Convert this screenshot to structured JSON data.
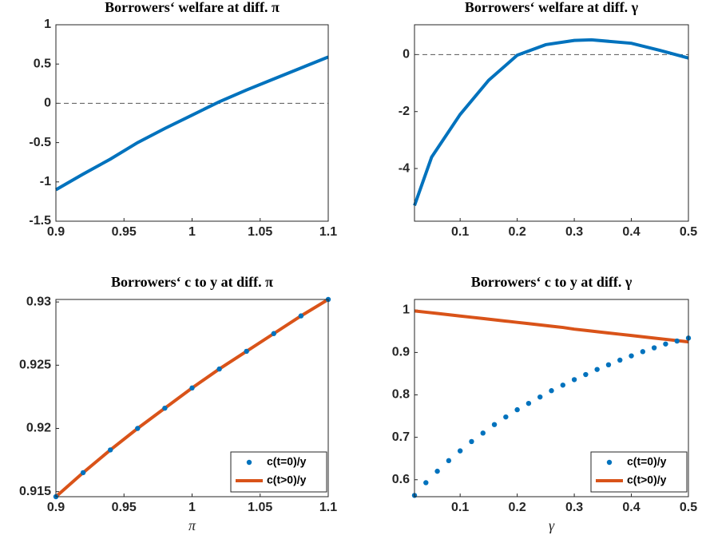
{
  "chart_data": [
    {
      "type": "line",
      "title": "Borrowers‘ welfare at diff. π",
      "x": [
        0.9,
        0.92,
        0.94,
        0.96,
        0.98,
        1.0,
        1.02,
        1.04,
        1.06,
        1.08,
        1.1
      ],
      "series": [
        {
          "color": "#0072BD",
          "style": "line",
          "values": [
            -1.1,
            -0.9,
            -0.71,
            -0.5,
            -0.32,
            -0.15,
            0.02,
            0.17,
            0.31,
            0.45,
            0.59
          ]
        }
      ],
      "hline": 0,
      "xlim": [
        0.9,
        1.1
      ],
      "xticks": [
        0.9,
        0.95,
        1,
        1.05,
        1.1
      ],
      "ylim": [
        -1.5,
        1
      ],
      "yticks": [
        -1.5,
        -1,
        -0.5,
        0,
        0.5,
        1
      ]
    },
    {
      "type": "line",
      "title": "Borrowers‘ welfare at diff. γ",
      "x": [
        0.02,
        0.05,
        0.1,
        0.15,
        0.2,
        0.25,
        0.3,
        0.33,
        0.4,
        0.45,
        0.5
      ],
      "series": [
        {
          "color": "#0072BD",
          "style": "line",
          "values": [
            -5.3,
            -3.6,
            -2.1,
            -0.9,
            -0.02,
            0.35,
            0.5,
            0.52,
            0.4,
            0.15,
            -0.12
          ]
        }
      ],
      "hline": 0,
      "xlim": [
        0.02,
        0.5
      ],
      "xticks": [
        0.1,
        0.2,
        0.3,
        0.4,
        0.5
      ],
      "ylim": [
        -5.85,
        1.05
      ],
      "yticks": [
        -4,
        -2,
        0
      ]
    },
    {
      "type": "line",
      "title": "Borrowers‘ c to y at diff. π",
      "x_label": "π",
      "x": [
        0.9,
        0.92,
        0.94,
        0.96,
        0.98,
        1.0,
        1.02,
        1.04,
        1.06,
        1.08,
        1.1
      ],
      "series": [
        {
          "name": "c(t=0)/y",
          "color": "#0072BD",
          "style": "marker",
          "values": [
            0.9146,
            0.9165,
            0.9183,
            0.92,
            0.9216,
            0.9232,
            0.9247,
            0.9261,
            0.9275,
            0.9289,
            0.9302
          ]
        },
        {
          "name": "c(t>0)/y",
          "color": "#D95319",
          "style": "line",
          "values": [
            0.9146,
            0.9165,
            0.9183,
            0.92,
            0.9216,
            0.9232,
            0.9247,
            0.9261,
            0.9275,
            0.9289,
            0.9302
          ]
        }
      ],
      "legend": "southeast",
      "xlim": [
        0.9,
        1.1
      ],
      "xticks": [
        0.9,
        0.95,
        1,
        1.05,
        1.1
      ],
      "ylim": [
        0.9146,
        0.9302
      ],
      "yticks": [
        0.915,
        0.92,
        0.925,
        0.93
      ]
    },
    {
      "type": "line",
      "title": "Borrowers‘ c to y at diff. γ",
      "x_label": "γ",
      "x": [
        0.02,
        0.04,
        0.06,
        0.08,
        0.1,
        0.12,
        0.14,
        0.16,
        0.18,
        0.2,
        0.22,
        0.24,
        0.26,
        0.28,
        0.3,
        0.32,
        0.34,
        0.36,
        0.38,
        0.4,
        0.42,
        0.44,
        0.46,
        0.48,
        0.5
      ],
      "series": [
        {
          "name": "c(t=0)/y",
          "color": "#0072BD",
          "style": "marker",
          "values": [
            0.563,
            0.593,
            0.62,
            0.645,
            0.668,
            0.69,
            0.71,
            0.73,
            0.748,
            0.765,
            0.78,
            0.795,
            0.81,
            0.823,
            0.836,
            0.848,
            0.86,
            0.871,
            0.882,
            0.892,
            0.902,
            0.911,
            0.92,
            0.927,
            0.934
          ]
        },
        {
          "name": "c(t>0)/y",
          "color": "#D95319",
          "style": "line",
          "values": [
            0.998,
            0.995,
            0.992,
            0.989,
            0.986,
            0.983,
            0.98,
            0.977,
            0.974,
            0.971,
            0.968,
            0.965,
            0.962,
            0.959,
            0.955,
            0.952,
            0.949,
            0.946,
            0.943,
            0.94,
            0.937,
            0.934,
            0.931,
            0.928,
            0.925
          ]
        }
      ],
      "legend": "southeast",
      "xlim": [
        0.02,
        0.5
      ],
      "xticks": [
        0.1,
        0.2,
        0.3,
        0.4,
        0.5
      ],
      "ylim": [
        0.56,
        1.025
      ],
      "yticks": [
        0.6,
        0.7,
        0.8,
        0.9,
        1
      ]
    }
  ]
}
